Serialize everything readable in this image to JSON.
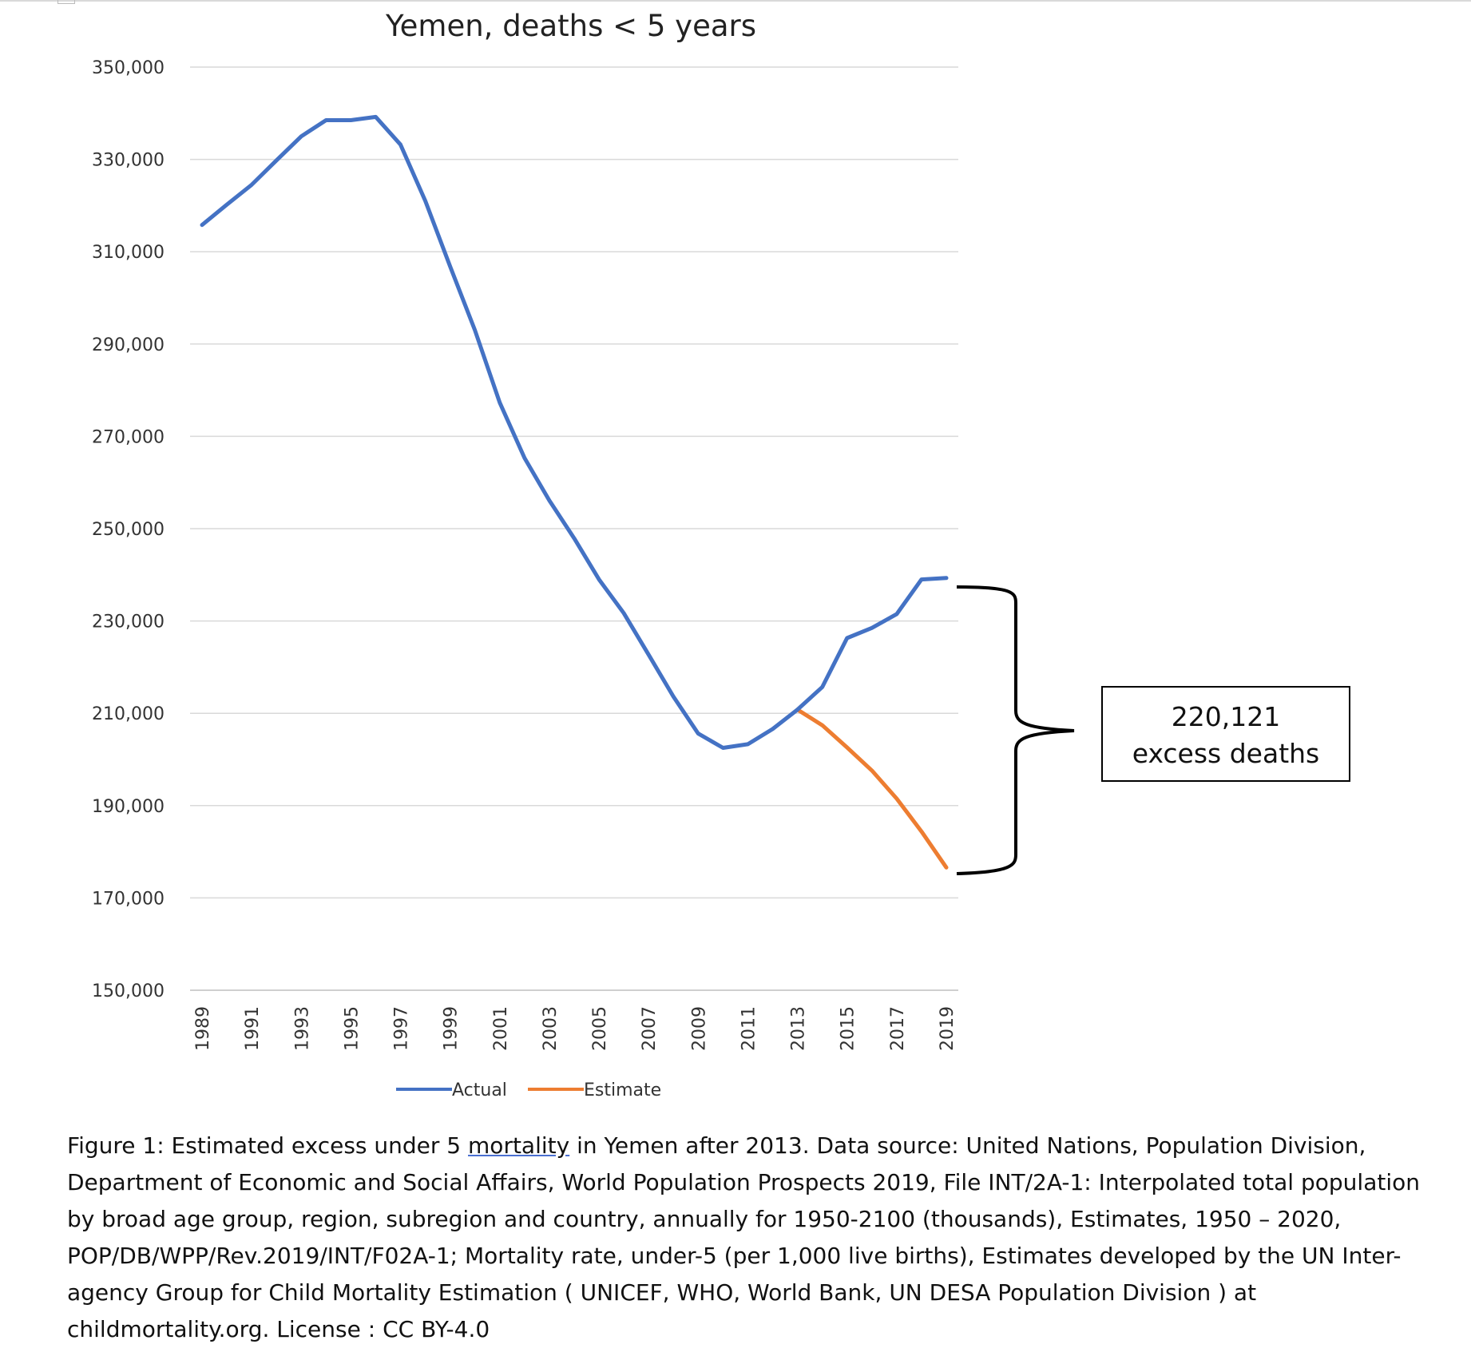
{
  "chart_data": {
    "type": "line",
    "title": "Yemen, deaths < 5 years",
    "xlabel": "",
    "ylabel": "",
    "ylim": [
      150000,
      350000
    ],
    "y_ticks": [
      "150,000",
      "170,000",
      "190,000",
      "210,000",
      "230,000",
      "250,000",
      "270,000",
      "290,000",
      "310,000",
      "330,000",
      "350,000"
    ],
    "x_tick_labels": [
      "1989",
      "1991",
      "1993",
      "1995",
      "1997",
      "1999",
      "2001",
      "2003",
      "2005",
      "2007",
      "2009",
      "2011",
      "2013",
      "2015",
      "2017",
      "2019"
    ],
    "x": [
      1989,
      1990,
      1991,
      1992,
      1993,
      1994,
      1995,
      1996,
      1997,
      1998,
      1999,
      2000,
      2001,
      2002,
      2003,
      2004,
      2005,
      2006,
      2007,
      2008,
      2009,
      2010,
      2011,
      2012,
      2013,
      2014,
      2015,
      2016,
      2017,
      2018,
      2019
    ],
    "grid": "horizontal",
    "legend_position": "bottom",
    "series": [
      {
        "name": "Actual",
        "color": "#4472C4",
        "x": [
          1989,
          1990,
          1991,
          1992,
          1993,
          1994,
          1995,
          1996,
          1997,
          1998,
          1999,
          2000,
          2001,
          2002,
          2003,
          2004,
          2005,
          2006,
          2007,
          2008,
          2009,
          2010,
          2011,
          2012,
          2013,
          2014,
          2015,
          2016,
          2017,
          2018,
          2019
        ],
        "values": [
          315800,
          320200,
          324500,
          329800,
          335000,
          338500,
          338500,
          339200,
          333200,
          321000,
          306800,
          293000,
          277300,
          265300,
          256100,
          247900,
          239000,
          231700,
          222700,
          213600,
          205600,
          202500,
          203300,
          206600,
          210800,
          215700,
          226300,
          228500,
          231500,
          239000,
          239300
        ]
      },
      {
        "name": "Estimate",
        "color": "#ED7D31",
        "x": [
          2013,
          2014,
          2015,
          2016,
          2017,
          2018,
          2019
        ],
        "values": [
          210800,
          207400,
          202600,
          197600,
          191500,
          184400,
          176600
        ]
      }
    ],
    "annotation": {
      "lines": [
        "220,121",
        "excess deaths"
      ]
    }
  },
  "caption": {
    "before": "Figure 1: Estimated excess under 5 ",
    "underlined": "mortality",
    "after": " in Yemen after 2013. Data source: United Nations, Population Division, Department of Economic and Social Affairs, World Population Prospects 2019, File INT/2A-1: Interpolated total population by broad age group, region, subregion and country, annually for 1950-2100 (thousands), Estimates, 1950 – 2020, POP/DB/WPP/Rev.2019/INT/F02A-1; Mortality rate, under-5 (per 1,000 live births), Estimates developed by the UN Inter-agency Group for Child Mortality Estimation ( UNICEF, WHO, World Bank, UN DESA Population Division ) at childmortality.org. License : CC BY-4.0"
  }
}
